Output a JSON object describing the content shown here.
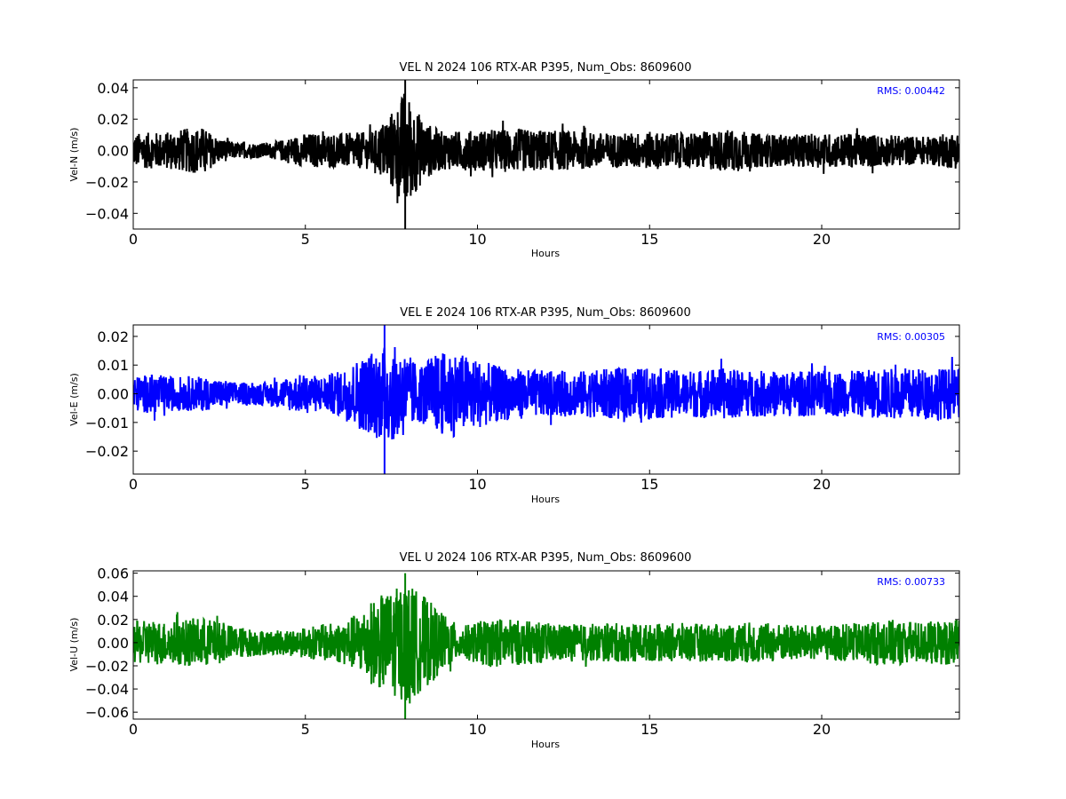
{
  "chart_data": [
    {
      "type": "line",
      "title": "VEL N 2024 106 RTX-AR  P395, Num_Obs: 8609600",
      "xlabel": "Hours",
      "ylabel": "Vel-N (m/s)",
      "xlim": [
        0,
        24
      ],
      "ylim": [
        -0.05,
        0.045
      ],
      "xticks": [
        0,
        5,
        10,
        15,
        20
      ],
      "yticks": [
        -0.04,
        -0.02,
        0.0,
        0.02,
        0.04
      ],
      "ytick_labels": [
        "−0.04",
        "−0.02",
        "0.00",
        "0.02",
        "0.04"
      ],
      "color": "#000000",
      "rms_label": "RMS:  0.00442",
      "rms_color": "#0000ff",
      "grid": false,
      "envelope": {
        "hours": [
          0,
          1,
          1.5,
          2,
          2.2,
          2.5,
          3,
          4,
          4.5,
          5,
          6,
          7,
          7.7,
          7.9,
          8.1,
          8.5,
          9,
          10,
          11,
          12,
          13,
          14,
          15,
          16,
          17,
          17.5,
          18,
          19,
          20,
          21,
          22,
          23,
          24
        ],
        "amplitude": [
          0.011,
          0.012,
          0.014,
          0.015,
          0.012,
          0.008,
          0.005,
          0.005,
          0.008,
          0.011,
          0.011,
          0.012,
          0.03,
          0.04,
          0.03,
          0.018,
          0.012,
          0.013,
          0.014,
          0.013,
          0.012,
          0.011,
          0.012,
          0.011,
          0.013,
          0.014,
          0.011,
          0.01,
          0.011,
          0.011,
          0.01,
          0.009,
          0.012
        ]
      },
      "peak_max": 0.045,
      "peak_min": -0.05
    },
    {
      "type": "line",
      "title": "VEL E 2024 106 RTX-AR  P395, Num_Obs: 8609600",
      "xlabel": "Hours",
      "ylabel": "Vel-E (m/s)",
      "xlim": [
        0,
        24
      ],
      "ylim": [
        -0.028,
        0.024
      ],
      "xticks": [
        0,
        5,
        10,
        15,
        20
      ],
      "yticks": [
        -0.02,
        -0.01,
        0.0,
        0.01,
        0.02
      ],
      "ytick_labels": [
        "−0.02",
        "−0.01",
        "0.00",
        "0.01",
        "0.02"
      ],
      "color": "#0000ff",
      "rms_label": "RMS:  0.00305",
      "rms_color": "#0000ff",
      "grid": false,
      "envelope": {
        "hours": [
          0,
          0.6,
          1,
          2,
          3,
          4,
          4.5,
          5,
          5.5,
          6,
          6.5,
          7,
          7.3,
          7.8,
          8.3,
          8.8,
          9.3,
          9.8,
          10.5,
          11,
          12,
          13,
          14,
          15,
          16,
          17,
          18,
          19,
          20,
          21,
          22,
          23,
          24
        ],
        "amplitude": [
          0.006,
          0.007,
          0.006,
          0.006,
          0.004,
          0.004,
          0.006,
          0.007,
          0.006,
          0.008,
          0.012,
          0.015,
          0.017,
          0.016,
          0.01,
          0.014,
          0.015,
          0.013,
          0.01,
          0.009,
          0.008,
          0.008,
          0.009,
          0.009,
          0.008,
          0.009,
          0.008,
          0.008,
          0.008,
          0.008,
          0.009,
          0.009,
          0.009
        ]
      },
      "peak_max": 0.024,
      "peak_min": -0.028
    },
    {
      "type": "line",
      "title": "VEL U 2024 106 RTX-AR  P395, Num_Obs: 8609600",
      "xlabel": "Hours",
      "ylabel": "Vel-U (m/s)",
      "xlim": [
        0,
        24
      ],
      "ylim": [
        -0.066,
        0.062
      ],
      "xticks": [
        0,
        5,
        10,
        15,
        20
      ],
      "yticks": [
        -0.06,
        -0.04,
        -0.02,
        0.0,
        0.02,
        0.04,
        0.06
      ],
      "ytick_labels": [
        "−0.06",
        "−0.04",
        "−0.02",
        "0.00",
        "0.02",
        "0.04",
        "0.06"
      ],
      "color": "#008000",
      "rms_label": "RMS:  0.00733",
      "rms_color": "#0000ff",
      "grid": false,
      "envelope": {
        "hours": [
          0,
          0.6,
          1,
          2,
          2.5,
          3,
          4,
          5,
          5.5,
          6,
          6.5,
          7,
          7.5,
          7.9,
          8.4,
          9,
          9.5,
          10,
          10.5,
          11,
          12,
          13,
          14,
          15,
          16,
          17,
          18,
          19,
          20,
          21,
          22,
          23,
          24
        ],
        "amplitude": [
          0.018,
          0.02,
          0.018,
          0.022,
          0.018,
          0.014,
          0.01,
          0.013,
          0.016,
          0.018,
          0.025,
          0.038,
          0.045,
          0.052,
          0.042,
          0.025,
          0.014,
          0.018,
          0.022,
          0.02,
          0.017,
          0.016,
          0.017,
          0.016,
          0.017,
          0.016,
          0.018,
          0.016,
          0.015,
          0.017,
          0.02,
          0.018,
          0.02
        ]
      },
      "peak_max": 0.06,
      "peak_min": -0.066
    }
  ]
}
